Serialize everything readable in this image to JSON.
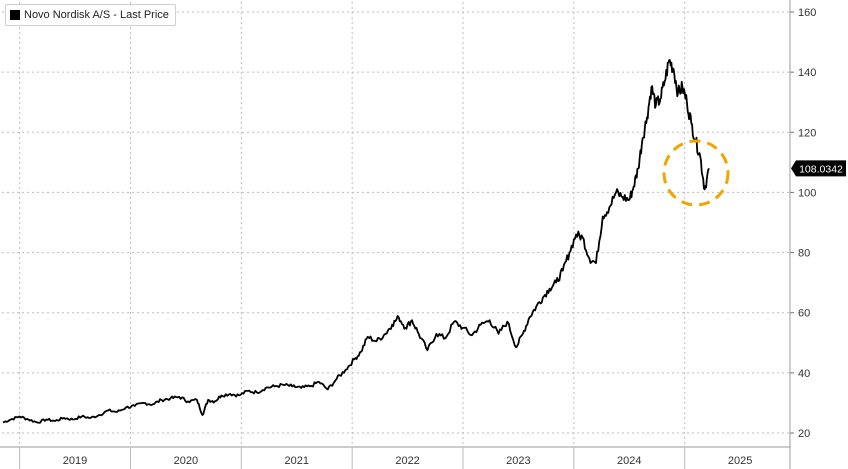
{
  "chart_data": {
    "type": "line",
    "title": "",
    "xlabel": "",
    "ylabel": "",
    "legend_position": "top-left",
    "grid": true,
    "y_scale": "linear",
    "ylim": [
      20,
      160
    ],
    "y_ticks": [
      20,
      40,
      60,
      80,
      100,
      120,
      140,
      160
    ],
    "x_range": [
      2018.35,
      2025.45
    ],
    "x_ticks": [
      "2019",
      "2020",
      "2021",
      "2022",
      "2023",
      "2024",
      "2025"
    ],
    "x_tick_positions": [
      2019.0,
      2020.0,
      2021.0,
      2022.0,
      2023.0,
      2024.0,
      2025.0
    ],
    "last_value_label": "108.0342",
    "series": [
      {
        "name": "Novo Nordisk A/S - Last Price",
        "color": "#000000",
        "x": [
          2018.35,
          2018.42,
          2018.5,
          2018.58,
          2018.66,
          2018.74,
          2018.82,
          2018.9,
          2018.98,
          2019.06,
          2019.14,
          2019.22,
          2019.3,
          2019.38,
          2019.46,
          2019.54,
          2019.62,
          2019.7,
          2019.78,
          2019.86,
          2019.94,
          2020.02,
          2020.1,
          2020.15,
          2020.2,
          2020.26,
          2020.32,
          2020.4,
          2020.48,
          2020.56,
          2020.64,
          2020.72,
          2020.8,
          2020.88,
          2020.96,
          2021.04,
          2021.12,
          2021.2,
          2021.28,
          2021.36,
          2021.44,
          2021.52,
          2021.58,
          2021.64,
          2021.72,
          2021.8,
          2021.86,
          2021.92,
          2021.98,
          2022.04,
          2022.1,
          2022.18,
          2022.26,
          2022.34,
          2022.42,
          2022.5,
          2022.58,
          2022.66,
          2022.74,
          2022.82,
          2022.9,
          2022.98,
          2023.04,
          2023.1,
          2023.16,
          2023.22,
          2023.28,
          2023.34,
          2023.4,
          2023.46,
          2023.52,
          2023.58,
          2023.64,
          2023.7,
          2023.76,
          2023.82,
          2023.88,
          2023.94,
          2024.0,
          2024.04,
          2024.08,
          2024.12,
          2024.16,
          2024.2,
          2024.24,
          2024.28,
          2024.32,
          2024.36,
          2024.4,
          2024.44,
          2024.48,
          2024.52,
          2024.56,
          2024.6,
          2024.64,
          2024.68,
          2024.72
        ],
        "values": [
          23.5,
          24.5,
          25.5,
          24.5,
          23.5,
          24.5,
          24,
          25,
          24.5,
          25.5,
          25,
          26,
          27.5,
          27,
          28.5,
          29,
          30,
          29.5,
          31,
          31.5,
          32,
          30.5,
          31,
          26,
          31,
          30.5,
          32.5,
          33,
          32.5,
          34,
          33.5,
          35,
          35.5,
          36,
          35.5,
          35,
          35.5,
          37,
          34.5,
          38,
          41,
          44.5,
          47,
          52,
          50.5,
          53,
          56,
          58.5,
          55,
          57.5,
          53,
          47.5,
          53,
          51.5,
          57,
          55,
          52.5,
          56,
          57.5,
          53,
          57,
          48.5,
          53,
          58.5,
          62,
          65,
          68,
          70,
          74,
          80,
          86,
          85,
          78,
          76.5,
          92,
          95,
          100,
          98.5,
          97.5,
          102,
          108,
          118,
          125,
          135,
          129,
          131,
          137,
          144,
          141,
          133,
          135,
          130,
          123,
          117,
          112,
          101,
          108
        ]
      }
    ]
  }
}
